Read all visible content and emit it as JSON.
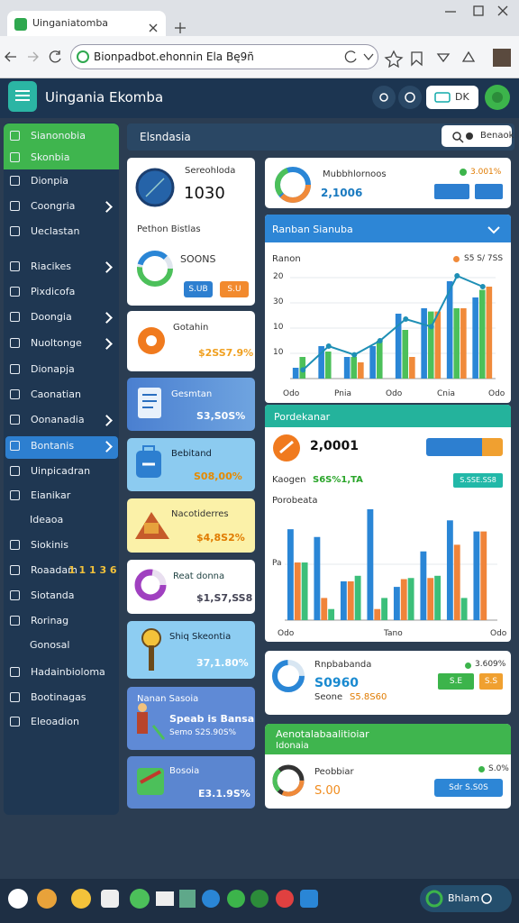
{
  "browser": {
    "tab_title": "Uinganiatomba",
    "url": "Bionpadbot.ehonnin Ela Bę9ñ"
  },
  "app": {
    "title": "Uingania Ekomba",
    "header_button": "DK"
  },
  "sidebar": {
    "items": [
      "Sianonobia",
      "Skonbia",
      "Dionpia",
      "Coongria",
      "Ueclastan",
      "Riacikes",
      "Pixdicofa",
      "Doongia",
      "Nuoltonge",
      "Dionapja",
      "Caonatian",
      "Oonanadia",
      "Bontanis",
      "Uinpicadran",
      "Eianikar",
      "Ideaoa",
      "Siokinis",
      "Roaadam",
      "Siotanda",
      "Rorinag",
      "Gonosal",
      "Hadainbioloma",
      "Bootinagas",
      "Eleoadion"
    ],
    "badge": "1 1 1 3 6"
  },
  "main": {
    "title": "Elsndasia",
    "search": "Benaok"
  },
  "overview": {
    "label": "Sereohloda",
    "value": "1030",
    "sublabel": "Pethon Bistlas",
    "sub_value": "SOONS",
    "buttons": [
      "S.UB",
      "S.U"
    ]
  },
  "stat_cards": [
    {
      "label": "Gotahin",
      "value": "$2SS7.9%"
    },
    {
      "label": "Gesmtan",
      "value": "S3,S0S%"
    },
    {
      "label": "Bebitand",
      "value": "S08,00%"
    },
    {
      "label": "Nacotiderres",
      "value": "$4,8S2%"
    },
    {
      "label": "Reat donna",
      "value": "$1,S7,SS8"
    },
    {
      "label": "Shiq Skeontia",
      "value": "37,1.80%"
    },
    {
      "label": "Nanan Sasoia",
      "value": "Speab is Bansa",
      "note": "Semo S2S.90S%"
    },
    {
      "label": "Bosoia",
      "value": "E3.1.9S%"
    }
  ],
  "summary": {
    "label": "Mubbhlornoos",
    "value": "2,1006",
    "change": "3.001%"
  },
  "growth": {
    "value": "2,0001",
    "label": "Kaogen",
    "change": "S6S%1,TA",
    "button": "S.SSE.SS8"
  },
  "report": {
    "label": "Rnpbabanda",
    "value": "S0960",
    "sublabel": "Seone",
    "sub_value": "S5.8S60",
    "change": "3.609%",
    "buttons": [
      "S.E",
      "S.S"
    ]
  },
  "footer_card": {
    "title": "Aenotalabaalitioiar",
    "subtitle": "Idonaia",
    "label": "Peobbiar",
    "value": "S.00",
    "change": "S.0%",
    "button": "Sdr S.S0S"
  },
  "chart_data": [
    {
      "type": "bar",
      "title": "Ranban Sianuba",
      "y_label": "Ranon",
      "legend": "S5 S/ 7SS",
      "y_labels": [
        "20",
        "30",
        "10",
        "10"
      ],
      "x_labels": [
        "Odo",
        "Pnia",
        "Odo",
        "Cnia",
        "Odo"
      ],
      "ylim": [
        0,
        100
      ],
      "series": [
        {
          "color": "#2a86d6",
          "values": [
            10,
            30,
            20,
            30,
            60,
            65,
            90,
            75
          ]
        },
        {
          "color": "#4cc05a",
          "values": [
            20,
            25,
            20,
            35,
            45,
            62,
            65,
            82
          ]
        },
        {
          "color": "#f08a3a",
          "values": [
            0,
            0,
            15,
            0,
            20,
            62,
            65,
            85
          ]
        },
        {
          "type": "line",
          "color": "#1e8fb5",
          "values": [
            8,
            30,
            22,
            35,
            55,
            48,
            95,
            85
          ]
        }
      ]
    },
    {
      "type": "bar",
      "title": "Pordekanar",
      "subtitle": "Porobeata",
      "y_labels": [
        "Pa"
      ],
      "x_labels": [
        "Odo",
        "Tano",
        "Odo"
      ],
      "ylim": [
        0,
        100
      ],
      "series": [
        {
          "color": "#2a86d6",
          "values": [
            82,
            75,
            35,
            100,
            30,
            62,
            90,
            80
          ]
        },
        {
          "color": "#f0843a",
          "values": [
            52,
            20,
            35,
            10,
            37,
            38,
            68,
            80
          ]
        },
        {
          "color": "#3cbf7a",
          "values": [
            52,
            10,
            40,
            20,
            38,
            40,
            20,
            0
          ]
        }
      ]
    }
  ],
  "taskbar": {
    "label": "Bhlam"
  }
}
